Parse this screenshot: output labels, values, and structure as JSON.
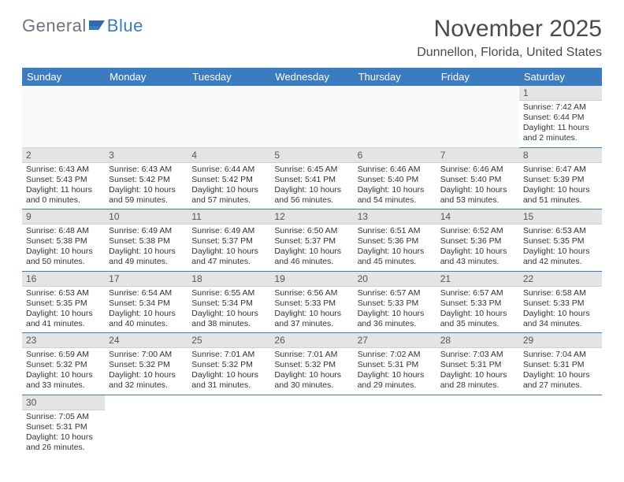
{
  "logo": {
    "part1": "General",
    "part2": "Blue"
  },
  "title": "November 2025",
  "location": "Dunnellon, Florida, United States",
  "dayHeaders": [
    "Sunday",
    "Monday",
    "Tuesday",
    "Wednesday",
    "Thursday",
    "Friday",
    "Saturday"
  ],
  "colors": {
    "header_bg": "#3b7bbf",
    "header_fg": "#ffffff",
    "daynum_bg": "#e4e4e4",
    "cell_border": "#3b7bbf",
    "logo_gray": "#6b7583",
    "logo_blue": "#3b7bbf"
  },
  "weeks": [
    [
      null,
      null,
      null,
      null,
      null,
      null,
      {
        "n": "1",
        "sr": "Sunrise: 7:42 AM",
        "ss": "Sunset: 6:44 PM",
        "dl": "Daylight: 11 hours and 2 minutes."
      }
    ],
    [
      {
        "n": "2",
        "sr": "Sunrise: 6:43 AM",
        "ss": "Sunset: 5:43 PM",
        "dl": "Daylight: 11 hours and 0 minutes."
      },
      {
        "n": "3",
        "sr": "Sunrise: 6:43 AM",
        "ss": "Sunset: 5:42 PM",
        "dl": "Daylight: 10 hours and 59 minutes."
      },
      {
        "n": "4",
        "sr": "Sunrise: 6:44 AM",
        "ss": "Sunset: 5:42 PM",
        "dl": "Daylight: 10 hours and 57 minutes."
      },
      {
        "n": "5",
        "sr": "Sunrise: 6:45 AM",
        "ss": "Sunset: 5:41 PM",
        "dl": "Daylight: 10 hours and 56 minutes."
      },
      {
        "n": "6",
        "sr": "Sunrise: 6:46 AM",
        "ss": "Sunset: 5:40 PM",
        "dl": "Daylight: 10 hours and 54 minutes."
      },
      {
        "n": "7",
        "sr": "Sunrise: 6:46 AM",
        "ss": "Sunset: 5:40 PM",
        "dl": "Daylight: 10 hours and 53 minutes."
      },
      {
        "n": "8",
        "sr": "Sunrise: 6:47 AM",
        "ss": "Sunset: 5:39 PM",
        "dl": "Daylight: 10 hours and 51 minutes."
      }
    ],
    [
      {
        "n": "9",
        "sr": "Sunrise: 6:48 AM",
        "ss": "Sunset: 5:38 PM",
        "dl": "Daylight: 10 hours and 50 minutes."
      },
      {
        "n": "10",
        "sr": "Sunrise: 6:49 AM",
        "ss": "Sunset: 5:38 PM",
        "dl": "Daylight: 10 hours and 49 minutes."
      },
      {
        "n": "11",
        "sr": "Sunrise: 6:49 AM",
        "ss": "Sunset: 5:37 PM",
        "dl": "Daylight: 10 hours and 47 minutes."
      },
      {
        "n": "12",
        "sr": "Sunrise: 6:50 AM",
        "ss": "Sunset: 5:37 PM",
        "dl": "Daylight: 10 hours and 46 minutes."
      },
      {
        "n": "13",
        "sr": "Sunrise: 6:51 AM",
        "ss": "Sunset: 5:36 PM",
        "dl": "Daylight: 10 hours and 45 minutes."
      },
      {
        "n": "14",
        "sr": "Sunrise: 6:52 AM",
        "ss": "Sunset: 5:36 PM",
        "dl": "Daylight: 10 hours and 43 minutes."
      },
      {
        "n": "15",
        "sr": "Sunrise: 6:53 AM",
        "ss": "Sunset: 5:35 PM",
        "dl": "Daylight: 10 hours and 42 minutes."
      }
    ],
    [
      {
        "n": "16",
        "sr": "Sunrise: 6:53 AM",
        "ss": "Sunset: 5:35 PM",
        "dl": "Daylight: 10 hours and 41 minutes."
      },
      {
        "n": "17",
        "sr": "Sunrise: 6:54 AM",
        "ss": "Sunset: 5:34 PM",
        "dl": "Daylight: 10 hours and 40 minutes."
      },
      {
        "n": "18",
        "sr": "Sunrise: 6:55 AM",
        "ss": "Sunset: 5:34 PM",
        "dl": "Daylight: 10 hours and 38 minutes."
      },
      {
        "n": "19",
        "sr": "Sunrise: 6:56 AM",
        "ss": "Sunset: 5:33 PM",
        "dl": "Daylight: 10 hours and 37 minutes."
      },
      {
        "n": "20",
        "sr": "Sunrise: 6:57 AM",
        "ss": "Sunset: 5:33 PM",
        "dl": "Daylight: 10 hours and 36 minutes."
      },
      {
        "n": "21",
        "sr": "Sunrise: 6:57 AM",
        "ss": "Sunset: 5:33 PM",
        "dl": "Daylight: 10 hours and 35 minutes."
      },
      {
        "n": "22",
        "sr": "Sunrise: 6:58 AM",
        "ss": "Sunset: 5:33 PM",
        "dl": "Daylight: 10 hours and 34 minutes."
      }
    ],
    [
      {
        "n": "23",
        "sr": "Sunrise: 6:59 AM",
        "ss": "Sunset: 5:32 PM",
        "dl": "Daylight: 10 hours and 33 minutes."
      },
      {
        "n": "24",
        "sr": "Sunrise: 7:00 AM",
        "ss": "Sunset: 5:32 PM",
        "dl": "Daylight: 10 hours and 32 minutes."
      },
      {
        "n": "25",
        "sr": "Sunrise: 7:01 AM",
        "ss": "Sunset: 5:32 PM",
        "dl": "Daylight: 10 hours and 31 minutes."
      },
      {
        "n": "26",
        "sr": "Sunrise: 7:01 AM",
        "ss": "Sunset: 5:32 PM",
        "dl": "Daylight: 10 hours and 30 minutes."
      },
      {
        "n": "27",
        "sr": "Sunrise: 7:02 AM",
        "ss": "Sunset: 5:31 PM",
        "dl": "Daylight: 10 hours and 29 minutes."
      },
      {
        "n": "28",
        "sr": "Sunrise: 7:03 AM",
        "ss": "Sunset: 5:31 PM",
        "dl": "Daylight: 10 hours and 28 minutes."
      },
      {
        "n": "29",
        "sr": "Sunrise: 7:04 AM",
        "ss": "Sunset: 5:31 PM",
        "dl": "Daylight: 10 hours and 27 minutes."
      }
    ],
    [
      {
        "n": "30",
        "sr": "Sunrise: 7:05 AM",
        "ss": "Sunset: 5:31 PM",
        "dl": "Daylight: 10 hours and 26 minutes."
      },
      null,
      null,
      null,
      null,
      null,
      null
    ]
  ]
}
